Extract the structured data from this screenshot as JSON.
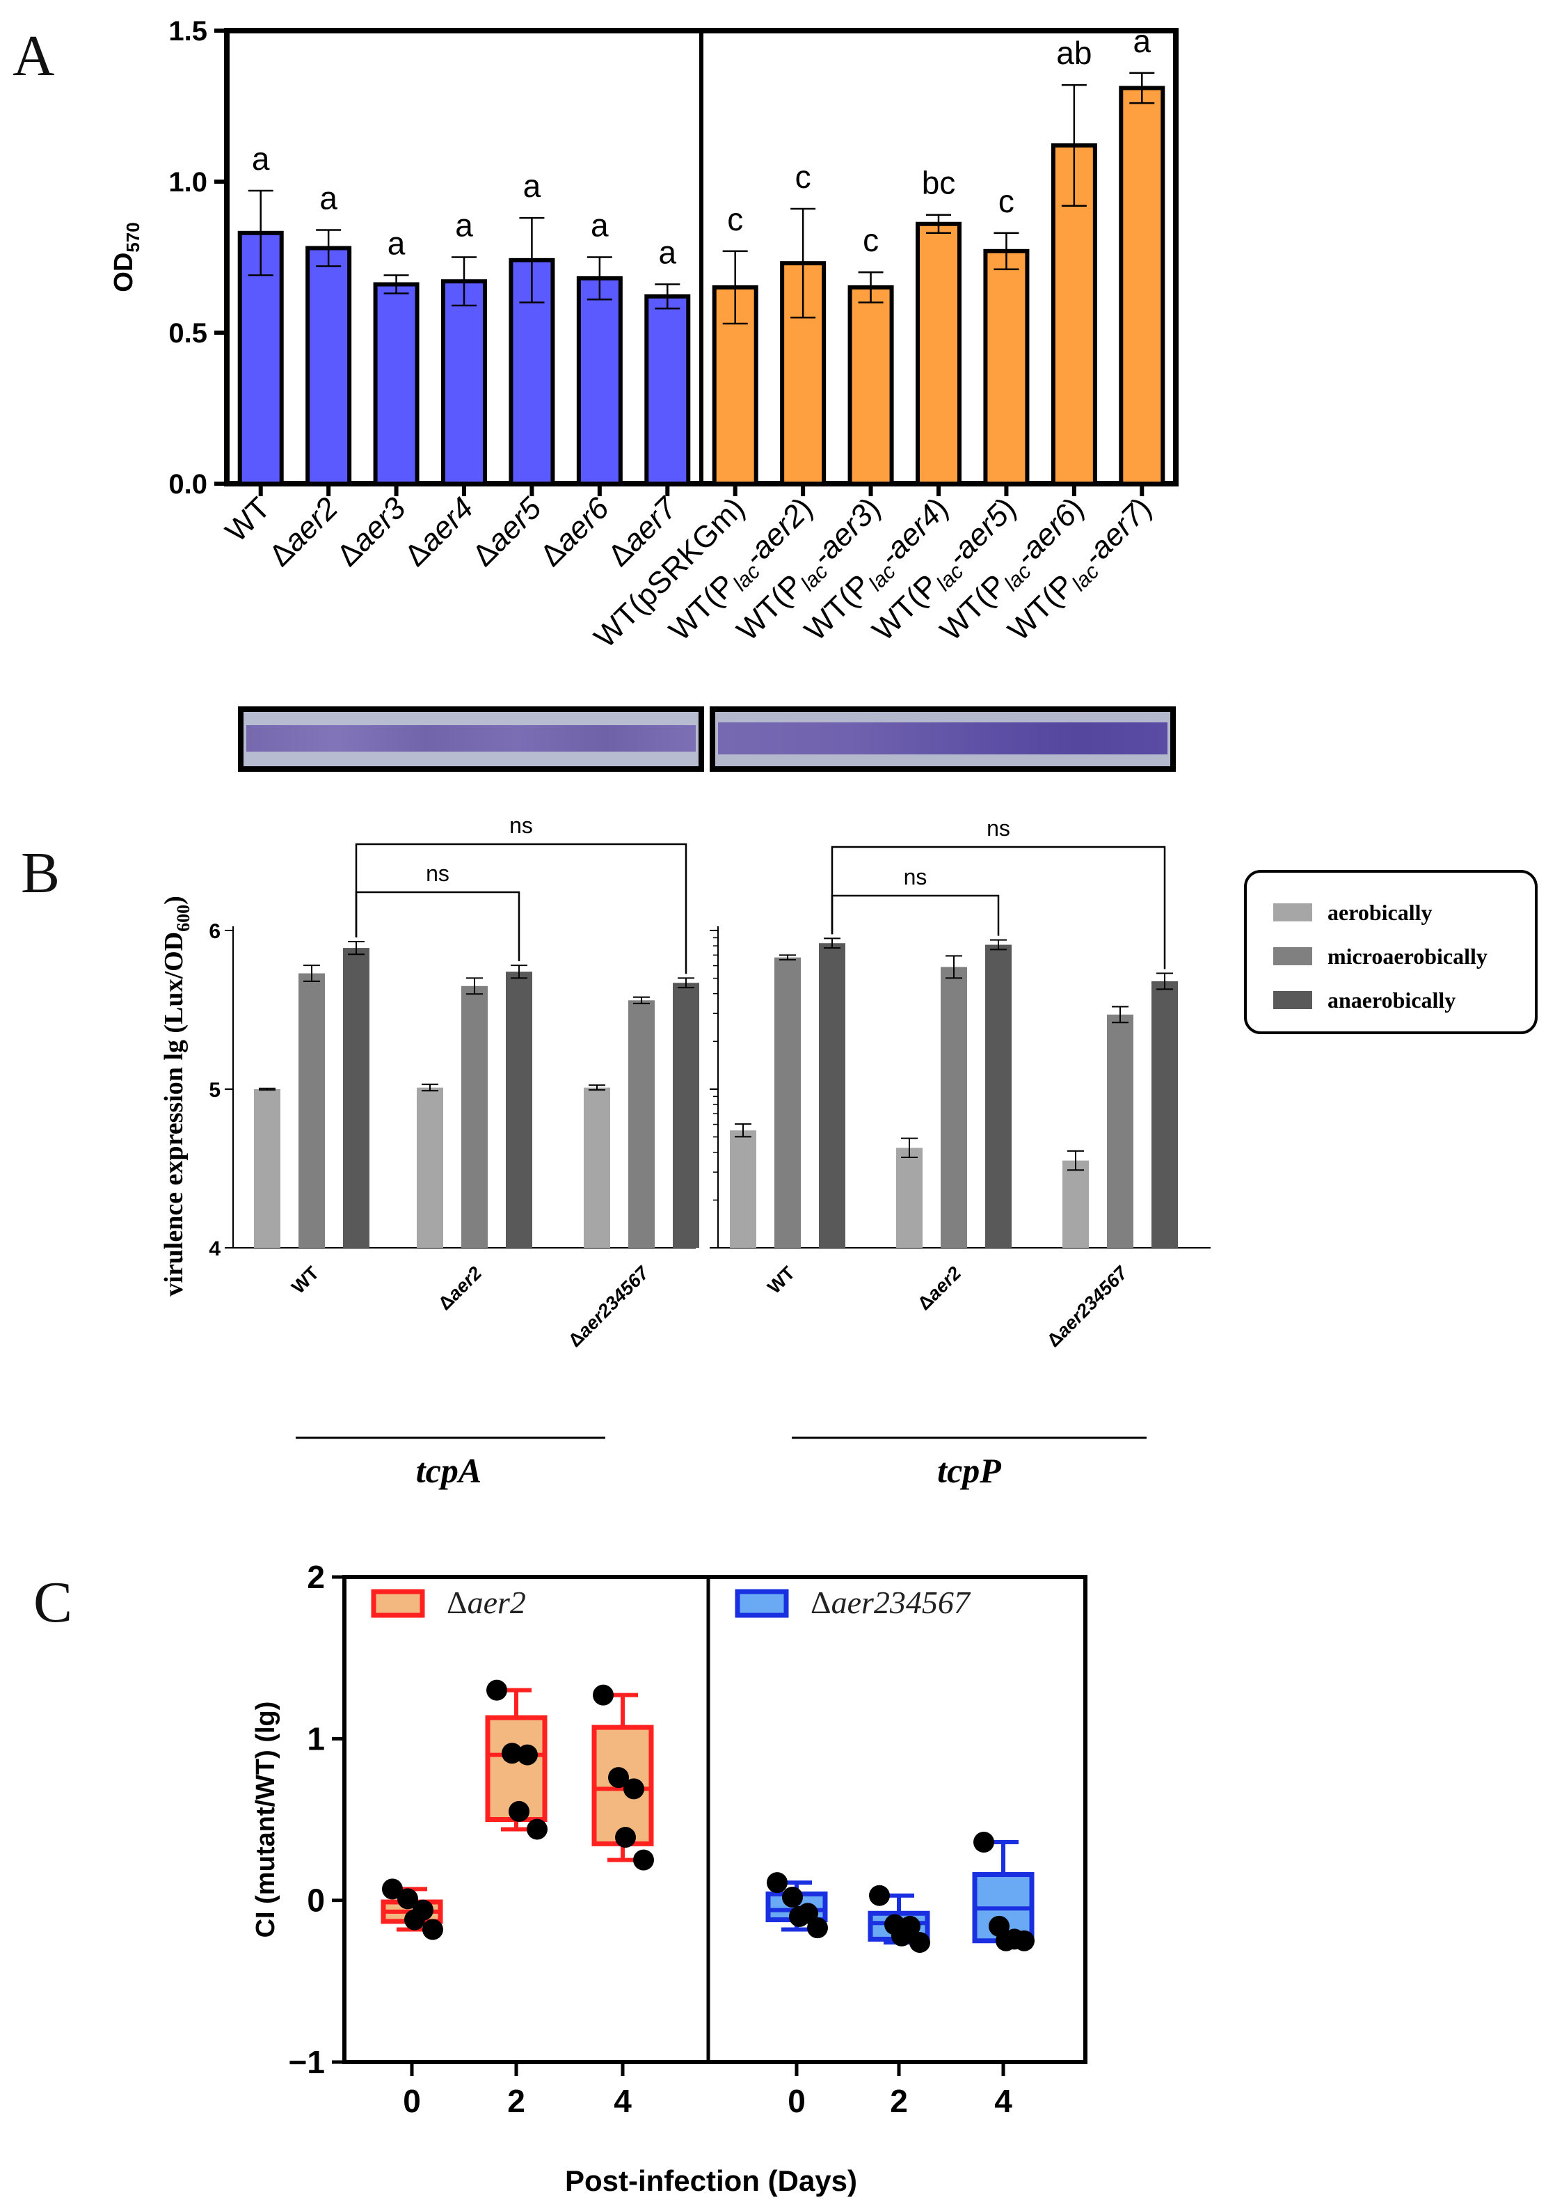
{
  "chart_data": [
    {
      "panel": "A",
      "type": "bar",
      "ylabel": "OD",
      "ylabel_sub": "570",
      "ylim": [
        0,
        1.5
      ],
      "yticks": [
        "0.0",
        "0.5",
        "1.0",
        "1.5"
      ],
      "colors": {
        "mutant": "#5a5aff",
        "overexpression": "#ffa040"
      },
      "bars": [
        {
          "label": "WT",
          "value": 0.83,
          "err": 0.14,
          "sig": "a",
          "group": "mutant"
        },
        {
          "label": "Δaer2",
          "value": 0.78,
          "err": 0.06,
          "sig": "a",
          "group": "mutant"
        },
        {
          "label": "Δaer3",
          "value": 0.66,
          "err": 0.03,
          "sig": "a",
          "group": "mutant"
        },
        {
          "label": "Δaer4",
          "value": 0.67,
          "err": 0.08,
          "sig": "a",
          "group": "mutant"
        },
        {
          "label": "Δaer5",
          "value": 0.74,
          "err": 0.14,
          "sig": "a",
          "group": "mutant"
        },
        {
          "label": "Δaer6",
          "value": 0.68,
          "err": 0.07,
          "sig": "a",
          "group": "mutant"
        },
        {
          "label": "Δaer7",
          "value": 0.62,
          "err": 0.04,
          "sig": "a",
          "group": "mutant"
        },
        {
          "label": "WT(pSRKGm)",
          "value": 0.65,
          "err": 0.12,
          "sig": "c",
          "group": "overexpression"
        },
        {
          "label": "WT(Plac-aer2)",
          "value": 0.73,
          "err": 0.18,
          "sig": "c",
          "group": "overexpression"
        },
        {
          "label": "WT(Plac-aer3)",
          "value": 0.65,
          "err": 0.05,
          "sig": "c",
          "group": "overexpression"
        },
        {
          "label": "WT(Plac-aer4)",
          "value": 0.86,
          "err": 0.03,
          "sig": "bc",
          "group": "overexpression"
        },
        {
          "label": "WT(Plac-aer5)",
          "value": 0.77,
          "err": 0.06,
          "sig": "c",
          "group": "overexpression"
        },
        {
          "label": "WT(Plac-aer6)",
          "value": 1.12,
          "err": 0.2,
          "sig": "ab",
          "group": "overexpression"
        },
        {
          "label": "WT(Plac-aer7)",
          "value": 1.31,
          "err": 0.05,
          "sig": "a",
          "group": "overexpression"
        }
      ]
    },
    {
      "panel": "B",
      "type": "bar",
      "ylabel": "virulence expression lg (Lux/OD",
      "ylabel_sub": "600",
      "ylabel_close": ")",
      "ylim": [
        4,
        6
      ],
      "yticks": [
        "4",
        "5",
        "6"
      ],
      "legend": [
        "aerobically",
        "microaerobically",
        "anaerobically"
      ],
      "series_colors": [
        "#a6a6a6",
        "#808080",
        "#595959"
      ],
      "groups": [
        {
          "gene": "tcpA",
          "categories": [
            "WT",
            "Δaer2",
            "Δaer234567"
          ],
          "series": [
            {
              "name": "aerobically",
              "values": [
                5.0,
                5.01,
                5.01
              ],
              "errors": [
                0.005,
                0.02,
                0.015
              ]
            },
            {
              "name": "microaerobically",
              "values": [
                5.73,
                5.65,
                5.56
              ],
              "errors": [
                0.05,
                0.05,
                0.02
              ]
            },
            {
              "name": "anaerobically",
              "values": [
                5.89,
                5.74,
                5.67
              ],
              "errors": [
                0.04,
                0.04,
                0.03
              ]
            }
          ],
          "comparisons": [
            {
              "label": "ns",
              "from": "WT",
              "to": "Δaer2"
            },
            {
              "label": "ns",
              "from": "WT",
              "to": "Δaer234567"
            }
          ]
        },
        {
          "gene": "tcpP",
          "categories": [
            "WT",
            "Δaer2",
            "Δaer234567"
          ],
          "series": [
            {
              "name": "aerobically",
              "values": [
                4.74,
                4.63,
                4.55
              ],
              "errors": [
                0.04,
                0.06,
                0.06
              ]
            },
            {
              "name": "microaerobically",
              "values": [
                5.83,
                5.77,
                5.47
              ],
              "errors": [
                0.015,
                0.07,
                0.05
              ]
            },
            {
              "name": "anaerobically",
              "values": [
                5.92,
                5.91,
                5.68
              ],
              "errors": [
                0.03,
                0.03,
                0.05
              ]
            }
          ],
          "comparisons": [
            {
              "label": "ns",
              "from": "WT",
              "to": "Δaer2"
            },
            {
              "label": "ns",
              "from": "WT",
              "to": "Δaer234567"
            }
          ]
        }
      ]
    },
    {
      "panel": "C",
      "type": "box",
      "ylabel": "CI (mutant/WT) (lg)",
      "xlabel": "Post-infection (Days)",
      "ylim": [
        -1,
        2
      ],
      "yticks": [
        "−1",
        "0",
        "1",
        "2"
      ],
      "groups": [
        {
          "name": "Δaer2",
          "color": "#ff2020",
          "fill": "#f2b880",
          "days": [
            "0",
            "2",
            "4"
          ],
          "boxes": [
            {
              "min": -0.18,
              "q1": -0.13,
              "median": -0.07,
              "q3": -0.01,
              "max": 0.07,
              "points": [
                0.07,
                0.01,
                -0.06,
                -0.12,
                -0.18
              ]
            },
            {
              "min": 0.44,
              "q1": 0.5,
              "median": 0.9,
              "q3": 1.13,
              "max": 1.3,
              "points": [
                1.3,
                0.91,
                0.9,
                0.55,
                0.44
              ]
            },
            {
              "min": 0.25,
              "q1": 0.35,
              "median": 0.69,
              "q3": 1.07,
              "max": 1.27,
              "points": [
                1.27,
                0.76,
                0.69,
                0.39,
                0.25
              ]
            }
          ]
        },
        {
          "name": "Δaer234567",
          "color": "#1a30e0",
          "fill": "#6aaaf5",
          "days": [
            "0",
            "2",
            "4"
          ],
          "boxes": [
            {
              "min": -0.18,
              "q1": -0.12,
              "median": -0.06,
              "q3": 0.04,
              "max": 0.11,
              "points": [
                0.11,
                0.02,
                -0.08,
                -0.1,
                -0.17
              ]
            },
            {
              "min": -0.26,
              "q1": -0.24,
              "median": -0.14,
              "q3": -0.08,
              "max": 0.03,
              "points": [
                0.03,
                -0.15,
                -0.16,
                -0.22,
                -0.26
              ]
            },
            {
              "min": -0.25,
              "q1": -0.25,
              "median": -0.05,
              "q3": 0.16,
              "max": 0.36,
              "points": [
                0.36,
                -0.16,
                -0.24,
                -0.25,
                -0.25
              ]
            }
          ]
        }
      ]
    }
  ]
}
